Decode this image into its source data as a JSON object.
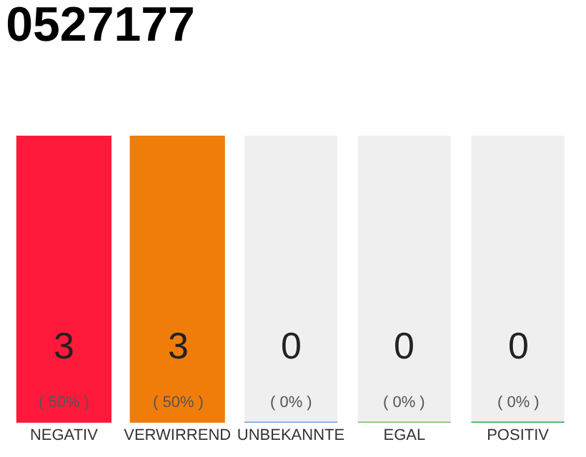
{
  "chart_data": {
    "type": "bar",
    "title": "0527177",
    "categories": [
      "NEGATIV",
      "VERWIRREND",
      "UNBEKANNTE",
      "EGAL",
      "POSITIV"
    ],
    "values": [
      3,
      3,
      0,
      0,
      0
    ],
    "colors": [
      "#ff1a3c",
      "#f07d0a",
      "#6f9ee0",
      "#7dc25c",
      "#22a845"
    ],
    "value_labels": [
      "3\n( 50% )",
      "3\n( 50% )",
      "0\n( 0% )",
      "0\n( 0% )",
      "0\n( 0% )"
    ],
    "ylim": [
      0,
      3
    ],
    "tick_labels": "x"
  }
}
